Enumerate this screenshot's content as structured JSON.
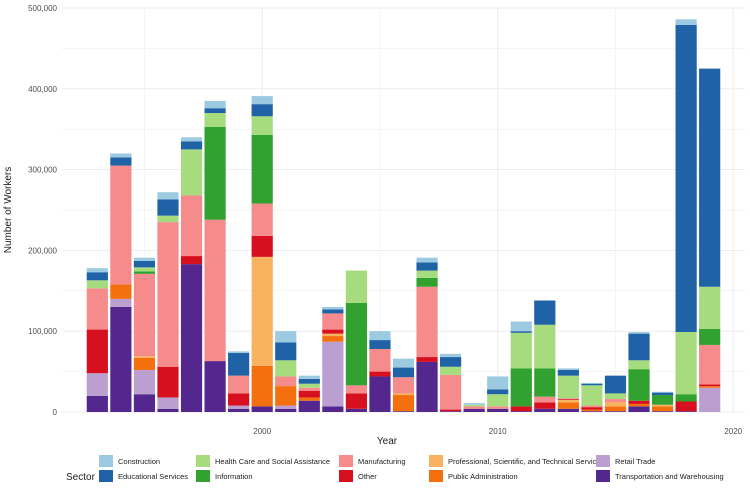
{
  "chart_data": {
    "type": "bar",
    "stacked": true,
    "title": "",
    "xlabel": "Year",
    "ylabel": "Number of Workers",
    "xlim": [
      1991.5,
      2020.5
    ],
    "ylim": [
      0,
      500000
    ],
    "x_ticks": [
      2000,
      2010,
      2020
    ],
    "y_ticks": [
      0,
      100000,
      200000,
      300000,
      400000,
      500000
    ],
    "y_tick_labels": [
      "0",
      "100,000",
      "200,000",
      "300,000",
      "400,000",
      "500,000"
    ],
    "grid": true,
    "legend_title": "Sector",
    "legend_position": "bottom",
    "x": [
      1993,
      1994,
      1995,
      1996,
      1997,
      1998,
      1999,
      2000,
      2001,
      2002,
      2003,
      2004,
      2005,
      2006,
      2007,
      2008,
      2009,
      2010,
      2011,
      2012,
      2013,
      2014,
      2015,
      2016,
      2017,
      2018,
      2019
    ],
    "series": [
      {
        "name": "Transportation and Warehousing",
        "color": "#54278f",
        "values": [
          20000,
          130000,
          22000,
          4000,
          183000,
          63000,
          4000,
          7000,
          4000,
          14000,
          7000,
          4000,
          44000,
          1000,
          62000,
          1000,
          4000,
          4000,
          1000,
          4000,
          4000,
          1000,
          1000,
          7000,
          1000,
          1000,
          0
        ]
      },
      {
        "name": "Retail Trade",
        "color": "#bc9fd1",
        "values": [
          28000,
          10000,
          30000,
          14000,
          0,
          0,
          4000,
          0,
          4000,
          0,
          80000,
          0,
          0,
          0,
          0,
          0,
          0,
          0,
          0,
          0,
          0,
          0,
          0,
          0,
          0,
          0,
          30000
        ]
      },
      {
        "name": "Public Administration",
        "color": "#f4700f",
        "values": [
          0,
          18000,
          15000,
          0,
          0,
          0,
          0,
          50000,
          24000,
          4000,
          7000,
          0,
          0,
          20000,
          0,
          0,
          0,
          0,
          0,
          0,
          8000,
          2000,
          6000,
          3000,
          6000,
          0,
          2000
        ]
      },
      {
        "name": "Professional, Scientific, and Technical Services",
        "color": "#f9b25f",
        "values": [
          0,
          0,
          2000,
          0,
          0,
          0,
          0,
          135000,
          0,
          0,
          3000,
          0,
          0,
          2000,
          0,
          0,
          0,
          0,
          0,
          0,
          3000,
          0,
          5000,
          0,
          2000,
          0,
          0
        ]
      },
      {
        "name": "Other",
        "color": "#d7101f",
        "values": [
          54000,
          0,
          0,
          38000,
          10000,
          0,
          15000,
          26000,
          0,
          8000,
          5000,
          19000,
          6000,
          0,
          6000,
          2000,
          0,
          0,
          6000,
          8000,
          1000,
          3000,
          0,
          4000,
          0,
          12000,
          2000
        ]
      },
      {
        "name": "Manufacturing",
        "color": "#f58b8b",
        "values": [
          51000,
          147000,
          102000,
          179000,
          75000,
          175000,
          22000,
          40000,
          12000,
          4000,
          20000,
          10000,
          28000,
          20000,
          87000,
          43000,
          3000,
          3000,
          0,
          7000,
          1000,
          2000,
          4000,
          0,
          0,
          0,
          49000
        ]
      },
      {
        "name": "Information",
        "color": "#31a12f",
        "values": [
          0,
          0,
          3000,
          0,
          0,
          115000,
          0,
          85000,
          0,
          0,
          0,
          102000,
          0,
          0,
          11000,
          0,
          0,
          0,
          47000,
          35000,
          0,
          0,
          0,
          39000,
          12000,
          9000,
          20000
        ]
      },
      {
        "name": "Health Care and Social Assistance",
        "color": "#a6dc7e",
        "values": [
          10000,
          0,
          5000,
          8000,
          57000,
          17000,
          0,
          23000,
          20000,
          5000,
          0,
          40000,
          0,
          0,
          9000,
          10000,
          2000,
          15000,
          44000,
          54000,
          28000,
          25000,
          7000,
          11000,
          0,
          77000,
          52000
        ]
      },
      {
        "name": "Educational Services",
        "color": "#1f62a5",
        "values": [
          10000,
          10000,
          8000,
          20000,
          10000,
          6000,
          28000,
          15000,
          22000,
          6000,
          5000,
          0,
          11000,
          12000,
          10000,
          12000,
          0,
          6000,
          2000,
          30000,
          7000,
          2000,
          22000,
          33000,
          3000,
          380000,
          270000
        ]
      },
      {
        "name": "Construction",
        "color": "#9ccbe1",
        "values": [
          5000,
          5000,
          4000,
          9000,
          5000,
          9000,
          2000,
          10000,
          14000,
          4000,
          3000,
          0,
          11000,
          11000,
          6000,
          4000,
          2000,
          16000,
          12000,
          0,
          2000,
          1000,
          0,
          2000,
          1000,
          7000,
          0
        ]
      }
    ],
    "legend_order": [
      "Construction",
      "Educational Services",
      "Health Care and Social Assistance",
      "Information",
      "Manufacturing",
      "Other",
      "Professional, Scientific, and Technical Services",
      "Public Administration",
      "Retail Trade",
      "Transportation and Warehousing"
    ],
    "colors": {
      "panel_background": "#ffffff",
      "grid": "#ebebeb",
      "text": "#4d4d4d"
    }
  }
}
